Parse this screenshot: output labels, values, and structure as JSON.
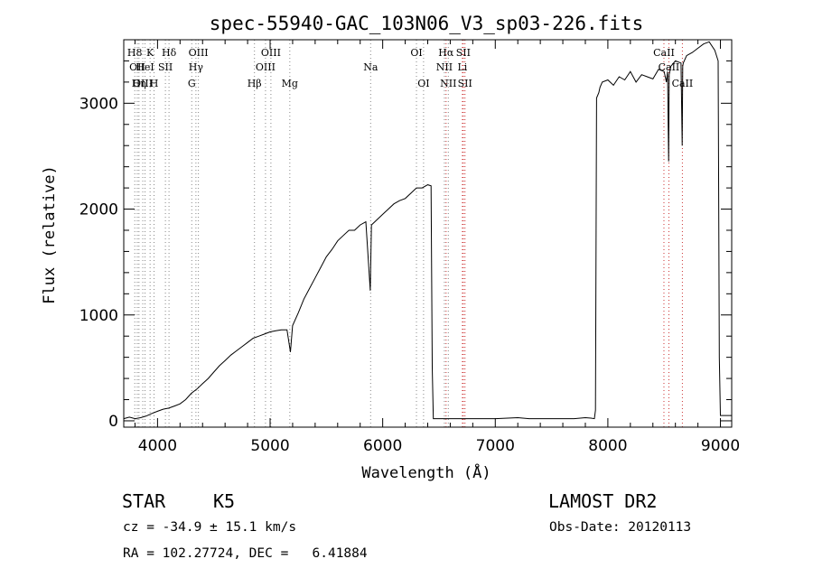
{
  "chart_data": {
    "type": "line",
    "title": "spec-55940-GAC_103N06_V3_sp03-226.fits",
    "xlabel": "Wavelength (Å)",
    "ylabel": "Flux (relative)",
    "xlim": [
      3700,
      9100
    ],
    "ylim": [
      -60,
      3600
    ],
    "xticks": [
      4000,
      5000,
      6000,
      7000,
      8000,
      9000
    ],
    "yticks": [
      0,
      1000,
      2000,
      3000
    ],
    "grid": false,
    "series": [
      {
        "color": "#000000",
        "x": [
          3700,
          3750,
          3800,
          3850,
          3900,
          3950,
          4000,
          4050,
          4100,
          4150,
          4200,
          4250,
          4300,
          4350,
          4400,
          4450,
          4500,
          4550,
          4600,
          4650,
          4700,
          4750,
          4800,
          4850,
          4900,
          4950,
          5000,
          5050,
          5100,
          5150,
          5180,
          5200,
          5250,
          5300,
          5350,
          5400,
          5450,
          5500,
          5550,
          5600,
          5650,
          5700,
          5750,
          5800,
          5850,
          5890,
          5900,
          5950,
          6000,
          6050,
          6100,
          6150,
          6200,
          6250,
          6300,
          6350,
          6400,
          6430,
          6440,
          6450,
          6500,
          6800,
          7000,
          7200,
          7300,
          7500,
          7700,
          7800,
          7850,
          7880,
          7890,
          7900,
          7920,
          7930,
          7950,
          8000,
          8050,
          8100,
          8150,
          8200,
          8250,
          8300,
          8350,
          8400,
          8450,
          8500,
          8520,
          8530,
          8540,
          8545,
          8550,
          8560,
          8600,
          8650,
          8660,
          8665,
          8670,
          8700,
          8750,
          8800,
          8850,
          8900,
          8950,
          8980,
          8990,
          9000,
          9100
        ],
        "y": [
          20,
          35,
          20,
          30,
          45,
          70,
          90,
          110,
          120,
          140,
          160,
          200,
          260,
          300,
          350,
          400,
          460,
          520,
          570,
          620,
          660,
          700,
          740,
          780,
          800,
          820,
          840,
          850,
          860,
          860,
          650,
          900,
          1020,
          1150,
          1250,
          1350,
          1450,
          1550,
          1620,
          1700,
          1750,
          1800,
          1800,
          1850,
          1880,
          1230,
          1850,
          1900,
          1950,
          2000,
          2050,
          2080,
          2100,
          2150,
          2200,
          2200,
          2230,
          2220,
          500,
          20,
          20,
          20,
          20,
          30,
          20,
          20,
          20,
          30,
          25,
          20,
          100,
          3050,
          3100,
          3150,
          3200,
          3220,
          3170,
          3250,
          3220,
          3300,
          3200,
          3270,
          3250,
          3230,
          3320,
          3300,
          3200,
          3300,
          2450,
          3270,
          3300,
          3350,
          3400,
          3380,
          2600,
          3350,
          3380,
          3450,
          3480,
          3520,
          3560,
          3580,
          3500,
          3400,
          600,
          50,
          50
        ]
      }
    ],
    "lines": {
      "gray": [
        {
          "x": 3798,
          "label": "H8",
          "row": 1
        },
        {
          "x": 3820,
          "label": "OII",
          "row": 2
        },
        {
          "x": 3835,
          "label": "Hη",
          "row": 3
        },
        {
          "x": 3869,
          "label": "OIII",
          "row": 3
        },
        {
          "x": 3889,
          "label": "HeI",
          "row": 2
        },
        {
          "x": 3934,
          "label": "K",
          "row": 1
        },
        {
          "x": 3969,
          "label": "H",
          "row": 3
        },
        {
          "x": 4070,
          "label": "SII",
          "row": 2
        },
        {
          "x": 4102,
          "label": "Hδ",
          "row": 1
        },
        {
          "x": 4304,
          "label": "G",
          "row": 3
        },
        {
          "x": 4341,
          "label": "Hγ",
          "row": 2
        },
        {
          "x": 4363,
          "label": "OIII",
          "row": 1
        },
        {
          "x": 4861,
          "label": "Hβ",
          "row": 3
        },
        {
          "x": 4959,
          "label": "OIII",
          "row": 2
        },
        {
          "x": 5007,
          "label": "OIII",
          "row": 1
        },
        {
          "x": 5175,
          "label": "Mg",
          "row": 3
        },
        {
          "x": 5893,
          "label": "Na",
          "row": 2
        },
        {
          "x": 6300,
          "label": "OI",
          "row": 1
        },
        {
          "x": 6363,
          "label": "OI",
          "row": 3
        },
        {
          "x": 6548,
          "label": "NII",
          "row": 2
        },
        {
          "x": 6583,
          "label": "NII",
          "row": 3
        }
      ],
      "red": [
        {
          "x": 6563,
          "label": "Hα",
          "row": 1
        },
        {
          "x": 6716,
          "label": "SII",
          "row": 1
        },
        {
          "x": 6708,
          "label": "Li",
          "row": 2
        },
        {
          "x": 6731,
          "label": "SII",
          "row": 3
        },
        {
          "x": 8498,
          "label": "CaII",
          "row": 1
        },
        {
          "x": 8542,
          "label": "CaII",
          "row": 2
        },
        {
          "x": 8662,
          "label": "CaII",
          "row": 3
        }
      ]
    }
  },
  "info": {
    "class": "STAR",
    "subclass": "K5",
    "survey": "LAMOST DR2",
    "cz": "cz = -34.9 ± 15.1 km/s",
    "obsdate": "Obs-Date: 20120113",
    "radec": "RA = 102.27724, DEC =   6.41884"
  }
}
